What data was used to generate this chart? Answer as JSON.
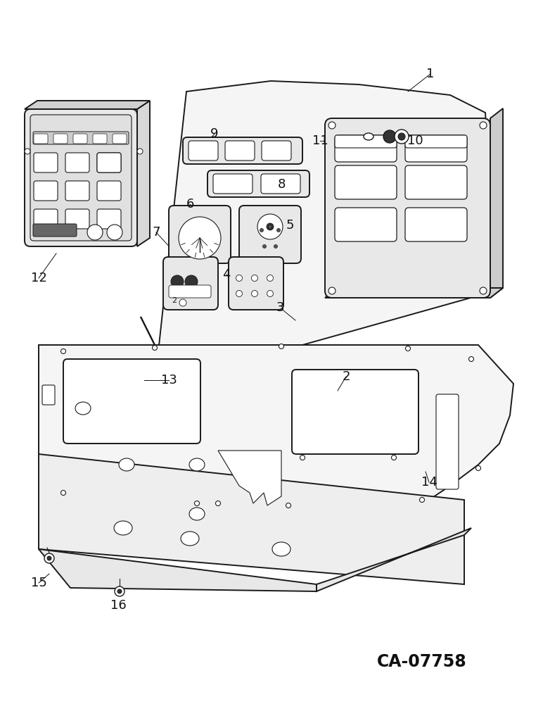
{
  "bg_color": "#ffffff",
  "line_color": "#1a1a1a",
  "catalog_number": "CA-07758",
  "lw_main": 1.4,
  "lw_thin": 0.8,
  "lw_detail": 0.6
}
